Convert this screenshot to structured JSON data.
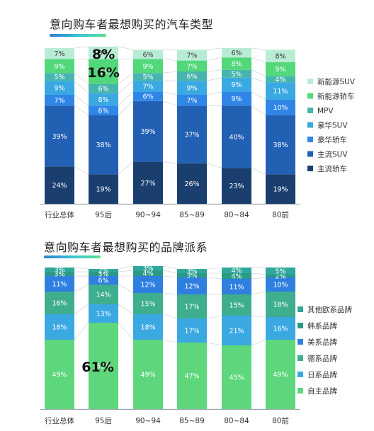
{
  "chart_data": [
    {
      "type": "bar",
      "stacked": true,
      "title": "意向购车者最想购买的汽车类型",
      "categories": [
        "行业总体",
        "95后",
        "90~94",
        "85~89",
        "80~84",
        "80前"
      ],
      "series": [
        {
          "name": "主流轿车",
          "color": "#1a3f6e",
          "values": [
            24,
            19,
            27,
            26,
            23,
            19
          ]
        },
        {
          "name": "主流SUV",
          "color": "#2260b4",
          "values": [
            39,
            38,
            39,
            37,
            40,
            38
          ]
        },
        {
          "name": "豪华轿车",
          "color": "#2f86e6",
          "values": [
            7,
            6,
            6,
            7,
            9,
            10
          ]
        },
        {
          "name": "豪华SUV",
          "color": "#3aa9e2",
          "values": [
            9,
            8,
            7,
            9,
            9,
            11
          ]
        },
        {
          "name": "MPV",
          "color": "#47b5ad",
          "values": [
            5,
            6,
            5,
            6,
            5,
            4
          ]
        },
        {
          "name": "新能源轿车",
          "color": "#52d77a",
          "values": [
            9,
            16,
            9,
            7,
            8,
            9
          ]
        },
        {
          "name": "新能源SUV",
          "color": "#b9ecd4",
          "values": [
            7,
            8,
            6,
            7,
            6,
            8
          ]
        }
      ],
      "annotations": [
        "8%",
        "16%"
      ],
      "ylim": [
        0,
        100
      ],
      "legend": "right"
    },
    {
      "type": "bar",
      "stacked": true,
      "title": "意向购车者最想购买的品牌派系",
      "categories": [
        "行业总体",
        "95后",
        "90~94",
        "85~89",
        "80~84",
        "80前"
      ],
      "series": [
        {
          "name": "自主品牌",
          "color": "#5ed67c",
          "values": [
            49,
            61,
            49,
            47,
            45,
            49
          ]
        },
        {
          "name": "日系品牌",
          "color": "#3aa9e2",
          "values": [
            18,
            13,
            18,
            17,
            21,
            16
          ]
        },
        {
          "name": "德系品牌",
          "color": "#3fae8e",
          "values": [
            16,
            14,
            15,
            17,
            15,
            18
          ]
        },
        {
          "name": "美系品牌",
          "color": "#2f7fe0",
          "values": [
            11,
            6,
            12,
            12,
            11,
            10
          ]
        },
        {
          "name": "韩系品牌",
          "color": "#2a9a86",
          "values": [
            3,
            3,
            4,
            3,
            4,
            2
          ]
        },
        {
          "name": "其他欧系品牌",
          "color": "#2fa79c",
          "values": [
            3,
            2,
            3,
            3,
            4,
            5
          ]
        }
      ],
      "annotations": [
        "61%"
      ],
      "ylim": [
        0,
        100
      ],
      "legend": "right"
    }
  ]
}
